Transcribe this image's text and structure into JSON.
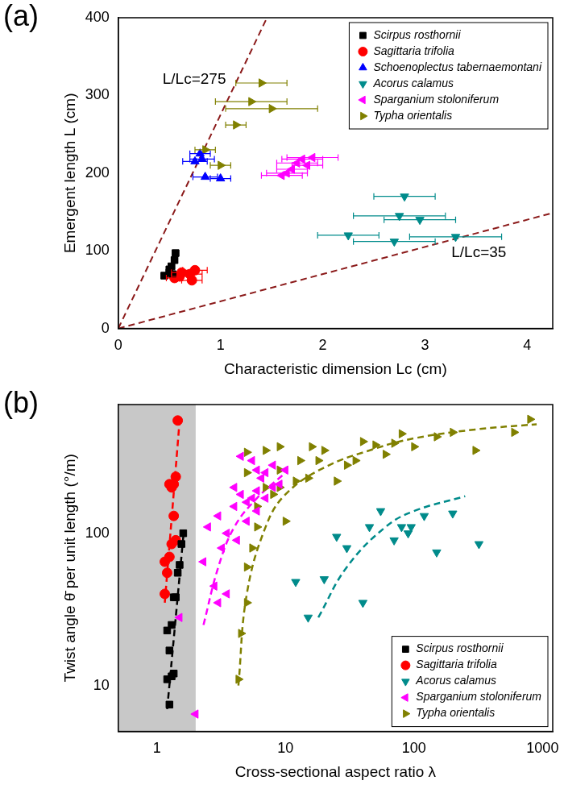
{
  "chart_data": [
    {
      "type": "scatter",
      "panel_label": "(a)",
      "x_label": "Characteristic dimension Lc (cm)",
      "y_label": "Emergent length L (cm)",
      "xlim": [
        0,
        4.25
      ],
      "ylim": [
        0,
        400
      ],
      "xticks": [
        0,
        1,
        2,
        3,
        4
      ],
      "yticks": [
        0,
        100,
        200,
        300,
        400
      ],
      "grid": false,
      "legend": "upper right",
      "series": [
        {
          "name": "Scirpus rosthornii",
          "color": "#000000",
          "marker": "square",
          "x": [
            0.45,
            0.5,
            0.52,
            0.55,
            0.56,
            0.5,
            0.53
          ],
          "values": [
            68,
            72,
            80,
            88,
            97,
            76,
            70
          ],
          "xerr": [
            0.03,
            0.03,
            0.03,
            0.03,
            0.03,
            0.03,
            0.03
          ]
        },
        {
          "name": "Sagittaria trifolia",
          "color": "#ff0000",
          "marker": "circle",
          "x": [
            0.55,
            0.62,
            0.7,
            0.75,
            0.72,
            0.6
          ],
          "values": [
            65,
            72,
            70,
            75,
            62,
            67
          ],
          "xerr": [
            0.08,
            0.1,
            0.12,
            0.12,
            0.1,
            0.08
          ]
        },
        {
          "name": "Schoenoplectus tabernaemontani",
          "color": "#0000ff",
          "marker": "triangle",
          "x": [
            0.75,
            0.8,
            0.85,
            1.0,
            0.82
          ],
          "values": [
            215,
            225,
            195,
            193,
            218
          ],
          "xerr": [
            0.12,
            0.1,
            0.12,
            0.1,
            0.12
          ]
        },
        {
          "name": "Acorus calamus",
          "color": "#008b8b",
          "marker": "triangle_down",
          "x": [
            2.25,
            2.7,
            2.75,
            2.8,
            2.95,
            3.3
          ],
          "values": [
            120,
            112,
            145,
            170,
            140,
            118
          ],
          "xerr": [
            0.3,
            0.4,
            0.45,
            0.3,
            0.35,
            0.45
          ]
        },
        {
          "name": "Sparganium stoloniferum",
          "color": "#ff00ff",
          "marker": "triangle_left",
          "x": [
            1.6,
            1.7,
            1.75,
            1.8,
            1.9,
            1.85,
            1.65
          ],
          "values": [
            197,
            205,
            213,
            218,
            220,
            210,
            200
          ],
          "xerr": [
            0.2,
            0.15,
            0.2,
            0.2,
            0.25,
            0.15,
            0.2
          ]
        },
        {
          "name": "Typha orientalis",
          "color": "#808000",
          "marker": "triangle_right",
          "x": [
            1.15,
            1.3,
            1.5,
            1.4,
            0.85,
            1.0
          ],
          "values": [
            262,
            292,
            283,
            316,
            230,
            210
          ],
          "xerr": [
            0.1,
            0.35,
            0.45,
            0.25,
            0.1,
            0.1
          ]
        }
      ],
      "reference_lines": [
        {
          "label": "L/Lc=275",
          "ratio": 275,
          "color": "#8b1a1a",
          "line_style": "dashed"
        },
        {
          "label": "L/Lc=35",
          "ratio": 35,
          "color": "#8b1a1a",
          "line_style": "dashed"
        }
      ]
    },
    {
      "type": "scatter",
      "panel_label": "(b)",
      "x_label": "Cross-sectional aspect ratio λ",
      "y_label": "Twist angle θ̄ per unit length (°/m)",
      "log": true,
      "xlim": [
        0.5,
        1200
      ],
      "ylim": [
        5,
        700
      ],
      "xticks": [
        1,
        10,
        100,
        1000
      ],
      "yticks": [
        10,
        100
      ],
      "grid": false,
      "legend": "lower right",
      "shaded_x": [
        0.5,
        2
      ],
      "series": [
        {
          "name": "Scirpus rosthornii",
          "color": "#000000",
          "marker": "square",
          "x": [
            1.25,
            1.2,
            1.3,
            1.35,
            1.25,
            1.2,
            1.3,
            1.35,
            1.4,
            1.45,
            1.5,
            1.55,
            1.6
          ],
          "values": [
            7.5,
            11,
            11.5,
            12,
            17,
            23,
            25,
            38,
            38,
            55,
            62,
            85,
            100
          ],
          "fit": {
            "x": [
              1.2,
              1.62
            ],
            "values": [
              7,
              105
            ],
            "line_style": "dashed"
          }
        },
        {
          "name": "Sagittaria trifolia",
          "color": "#ff0000",
          "marker": "circle",
          "x": [
            1.15,
            1.2,
            1.15,
            1.25,
            1.3,
            1.4,
            1.35,
            1.3,
            1.35,
            1.4,
            1.25,
            1.45
          ],
          "values": [
            40,
            55,
            65,
            70,
            85,
            90,
            130,
            200,
            210,
            235,
            210,
            550
          ],
          "fit": {
            "x": [
              1.15,
              1.5
            ],
            "values": [
              35,
              550
            ],
            "line_style": "dashed"
          }
        },
        {
          "name": "Acorus calamus",
          "color": "#008b8b",
          "marker": "triangle_down",
          "x": [
            12,
            15,
            20,
            25,
            30,
            40,
            45,
            55,
            70,
            80,
            90,
            95,
            120,
            150,
            200,
            320
          ],
          "values": [
            48,
            28,
            50,
            95,
            80,
            35,
            110,
            140,
            90,
            110,
            100,
            110,
            130,
            75,
            135,
            85
          ],
          "fit": {
            "x": [
              18,
              30,
              60,
              100,
              250
            ],
            "values": [
              28,
              60,
              110,
              140,
              175
            ],
            "line_style": "dashed"
          }
        },
        {
          "name": "Sparganium stoloniferum",
          "color": "#ff00ff",
          "marker": "triangle_left",
          "x": [
            1.5,
            2,
            2.3,
            2.5,
            3,
            3,
            3.5,
            3.5,
            4,
            4,
            4.5,
            5,
            5,
            5.5,
            6,
            6,
            6.5,
            7,
            7,
            8,
            8,
            9,
            10,
            4.5,
            5.5,
            6,
            2.8,
            3.2,
            4.2
          ],
          "values": [
            28,
            6.5,
            65,
            110,
            35,
            130,
            40,
            100,
            150,
            200,
            180,
            120,
            160,
            170,
            140,
            190,
            230,
            170,
            250,
            200,
            280,
            210,
            260,
            320,
            300,
            260,
            45,
            80,
            90
          ],
          "fit": {
            "x": [
              2.3,
              3,
              4,
              6,
              10
            ],
            "values": [
              25,
              60,
              110,
              170,
              250
            ],
            "line_style": "dashed"
          }
        },
        {
          "name": "Typha orientalis",
          "color": "#808000",
          "marker": "triangle_right",
          "x": [
            4.3,
            4.5,
            5,
            5,
            5.5,
            6,
            6,
            7,
            8,
            9,
            9,
            10,
            12,
            13,
            15,
            16,
            18,
            20,
            25,
            30,
            35,
            40,
            50,
            60,
            70,
            80,
            100,
            150,
            200,
            300,
            600,
            800,
            5,
            5,
            7,
            9
          ],
          "values": [
            11,
            22,
            35,
            60,
            80,
            110,
            150,
            200,
            180,
            200,
            260,
            120,
            220,
            300,
            230,
            370,
            300,
            350,
            220,
            280,
            300,
            400,
            380,
            330,
            390,
            450,
            370,
            430,
            460,
            350,
            460,
            560,
            250,
            340,
            350,
            370
          ],
          "fit": {
            "x": [
              4.3,
              5,
              7,
              10,
              20,
              50,
              100,
              300,
              900
            ],
            "values": [
              10,
              40,
              110,
              180,
              270,
              360,
              420,
              480,
              520
            ],
            "line_style": "dashed"
          }
        }
      ]
    }
  ]
}
